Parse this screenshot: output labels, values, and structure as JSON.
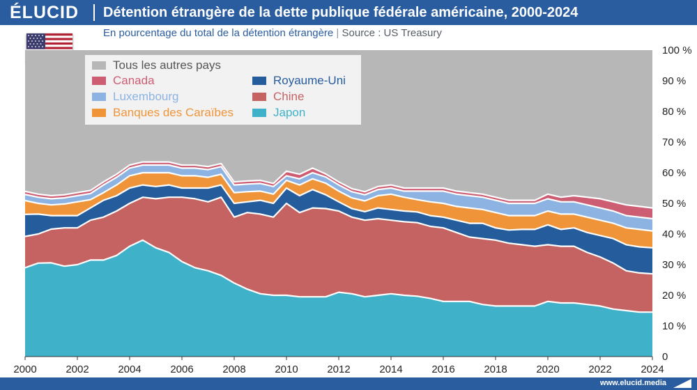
{
  "header": {
    "logo": "ÉLUCID",
    "title": "Détention étrangère de la dette publique fédérale américaine, 2000-2024",
    "subtitle_main": "En pourcentage du total de la détention étrangère",
    "subtitle_sep": "|",
    "subtitle_source": "Source : US Treasury"
  },
  "footer": {
    "url": "www.elucid.media"
  },
  "colors": {
    "header": "#2a5da0",
    "autres": "#b7b7b7",
    "canada": "#cc5d72",
    "luxembourg": "#8cb3e2",
    "caraibes": "#f0943a",
    "royaume_uni": "#255c9c",
    "chine": "#c56363",
    "japon": "#3fb1c9"
  },
  "chart_data": {
    "type": "area",
    "stacked": true,
    "title": "Détention étrangère de la dette publique fédérale américaine, 2000-2024",
    "subtitle": "En pourcentage du total de la détention étrangère",
    "xlabel": "",
    "ylabel": "",
    "xlim": [
      2000,
      2024
    ],
    "ylim": [
      0,
      100
    ],
    "x_ticks": [
      "2000",
      "2002",
      "2004",
      "2006",
      "2008",
      "2010",
      "2012",
      "2014",
      "2016",
      "2018",
      "2020",
      "2022",
      "2024"
    ],
    "y_ticks": [
      "0",
      "10 %",
      "20 %",
      "30 %",
      "40 %",
      "50 %",
      "60 %",
      "70 %",
      "80 %",
      "90 %",
      "100 %"
    ],
    "legend_position": "top-left",
    "legend": [
      {
        "key": "autres",
        "label": "Tous les autres pays"
      },
      {
        "key": "canada",
        "label": "Canada"
      },
      {
        "key": "luxembourg",
        "label": "Luxembourg"
      },
      {
        "key": "caraibes",
        "label": "Banques des Caraïbes"
      },
      {
        "key": "royaume_uni",
        "label": "Royaume-Uni"
      },
      {
        "key": "chine",
        "label": "Chine"
      },
      {
        "key": "japon",
        "label": "Japon"
      }
    ],
    "x": [
      2000,
      2000.5,
      2001,
      2001.5,
      2002,
      2002.5,
      2003,
      2003.5,
      2004,
      2004.5,
      2005,
      2005.5,
      2006,
      2006.5,
      2007,
      2007.5,
      2008,
      2008.5,
      2009,
      2009.5,
      2010,
      2010.5,
      2011,
      2011.5,
      2012,
      2012.5,
      2013,
      2013.5,
      2014,
      2014.5,
      2015,
      2015.5,
      2016,
      2016.5,
      2017,
      2017.5,
      2018,
      2018.5,
      2019,
      2019.5,
      2020,
      2020.5,
      2021,
      2021.5,
      2022,
      2022.5,
      2023,
      2023.5,
      2024
    ],
    "series": [
      {
        "key": "japon",
        "name": "Japon",
        "values": [
          29.0,
          30.5,
          30.6,
          29.5,
          30.0,
          31.5,
          31.5,
          33.0,
          36.0,
          38.0,
          35.5,
          34.0,
          31.0,
          29.0,
          28.0,
          26.5,
          24.0,
          22.0,
          20.5,
          20.0,
          20.0,
          19.5,
          19.5,
          19.5,
          21.0,
          20.5,
          19.5,
          20.0,
          20.5,
          20.0,
          19.7,
          19.0,
          18.0,
          18.0,
          18.0,
          17.0,
          16.5,
          16.5,
          16.5,
          16.5,
          18.0,
          17.5,
          17.5,
          17.0,
          16.5,
          15.5,
          15.0,
          14.5,
          14.5
        ]
      },
      {
        "key": "chine",
        "name": "Chine",
        "values": [
          10.2,
          9.5,
          11.0,
          12.5,
          12.0,
          13.0,
          14.0,
          14.5,
          14.0,
          14.0,
          16.0,
          18.0,
          21.0,
          22.5,
          22.5,
          25.5,
          21.5,
          25.0,
          26.0,
          25.5,
          30.0,
          27.5,
          29.0,
          28.8,
          26.5,
          25.0,
          25.0,
          25.0,
          24.0,
          24.0,
          24.0,
          23.5,
          24.0,
          22.5,
          21.0,
          21.5,
          21.5,
          20.5,
          20.0,
          19.5,
          18.5,
          18.5,
          18.5,
          17.0,
          16.0,
          15.0,
          13.0,
          12.8,
          12.5
        ]
      },
      {
        "key": "royaume_uni",
        "name": "Royaume-Uni",
        "values": [
          7.2,
          6.5,
          4.4,
          4.0,
          4.0,
          4.0,
          5.5,
          5.0,
          5.0,
          4.0,
          4.0,
          4.0,
          3.0,
          3.5,
          4.5,
          4.0,
          4.5,
          3.5,
          4.5,
          4.5,
          5.0,
          5.5,
          6.0,
          4.5,
          3.0,
          2.8,
          2.8,
          3.5,
          3.5,
          3.5,
          3.5,
          3.5,
          3.5,
          4.0,
          4.5,
          5.0,
          4.0,
          4.3,
          5.0,
          5.5,
          6.5,
          5.5,
          6.0,
          6.5,
          7.0,
          8.0,
          8.5,
          8.5,
          8.5
        ]
      },
      {
        "key": "caraibes",
        "name": "Banques des Caraïbes",
        "values": [
          4.5,
          3.5,
          3.5,
          3.8,
          4.5,
          2.7,
          2.5,
          3.5,
          4.0,
          4.0,
          4.5,
          4.0,
          4.0,
          4.0,
          3.5,
          3.5,
          3.5,
          3.3,
          3.0,
          3.0,
          2.5,
          3.5,
          3.5,
          3.8,
          3.5,
          3.5,
          3.5,
          4.0,
          5.0,
          4.5,
          4.0,
          4.5,
          4.5,
          4.5,
          5.0,
          4.5,
          5.0,
          4.7,
          4.5,
          4.5,
          4.5,
          5.0,
          4.5,
          5.0,
          5.0,
          5.0,
          5.5,
          5.7,
          5.5
        ]
      },
      {
        "key": "luxembourg",
        "name": "Luxembourg",
        "values": [
          2.0,
          2.0,
          2.0,
          2.0,
          2.0,
          2.0,
          2.5,
          2.5,
          2.5,
          2.5,
          2.5,
          2.5,
          2.5,
          2.5,
          2.5,
          2.5,
          2.5,
          2.5,
          2.5,
          2.5,
          1.5,
          2.0,
          2.0,
          2.0,
          2.0,
          2.0,
          2.0,
          2.0,
          2.0,
          2.0,
          2.8,
          3.5,
          4.0,
          4.0,
          4.0,
          4.0,
          4.0,
          4.0,
          4.0,
          4.0,
          4.0,
          4.0,
          4.0,
          4.0,
          4.0,
          4.0,
          4.0,
          4.0,
          4.0
        ]
      },
      {
        "key": "canada",
        "name": "Canada",
        "values": [
          1.0,
          1.0,
          1.0,
          1.0,
          1.0,
          1.0,
          1.0,
          1.0,
          1.0,
          1.0,
          1.0,
          1.0,
          1.0,
          1.0,
          1.0,
          1.0,
          1.0,
          1.0,
          1.0,
          1.0,
          1.5,
          1.5,
          1.5,
          1.0,
          1.0,
          1.0,
          1.0,
          1.0,
          1.0,
          1.0,
          1.0,
          1.0,
          1.0,
          1.0,
          1.0,
          1.0,
          1.0,
          1.0,
          1.0,
          1.0,
          1.5,
          1.5,
          2.0,
          2.5,
          3.0,
          3.0,
          3.5,
          3.5,
          3.5
        ]
      },
      {
        "key": "autres",
        "name": "Tous les autres pays",
        "values": [
          46.1,
          47.0,
          47.5,
          47.2,
          46.5,
          45.8,
          43.0,
          40.5,
          37.5,
          36.5,
          36.5,
          36.5,
          37.5,
          37.5,
          38.0,
          37.0,
          43.0,
          42.7,
          42.5,
          43.5,
          39.5,
          40.5,
          38.5,
          40.4,
          43.0,
          45.2,
          46.2,
          44.5,
          44.0,
          45.0,
          45.0,
          45.0,
          45.0,
          46.0,
          46.5,
          47.0,
          48.0,
          48.0,
          49.0,
          50.0,
          47.0,
          48.0,
          47.5,
          48.0,
          48.5,
          49.5,
          50.5,
          51.0,
          51.5
        ]
      }
    ]
  }
}
